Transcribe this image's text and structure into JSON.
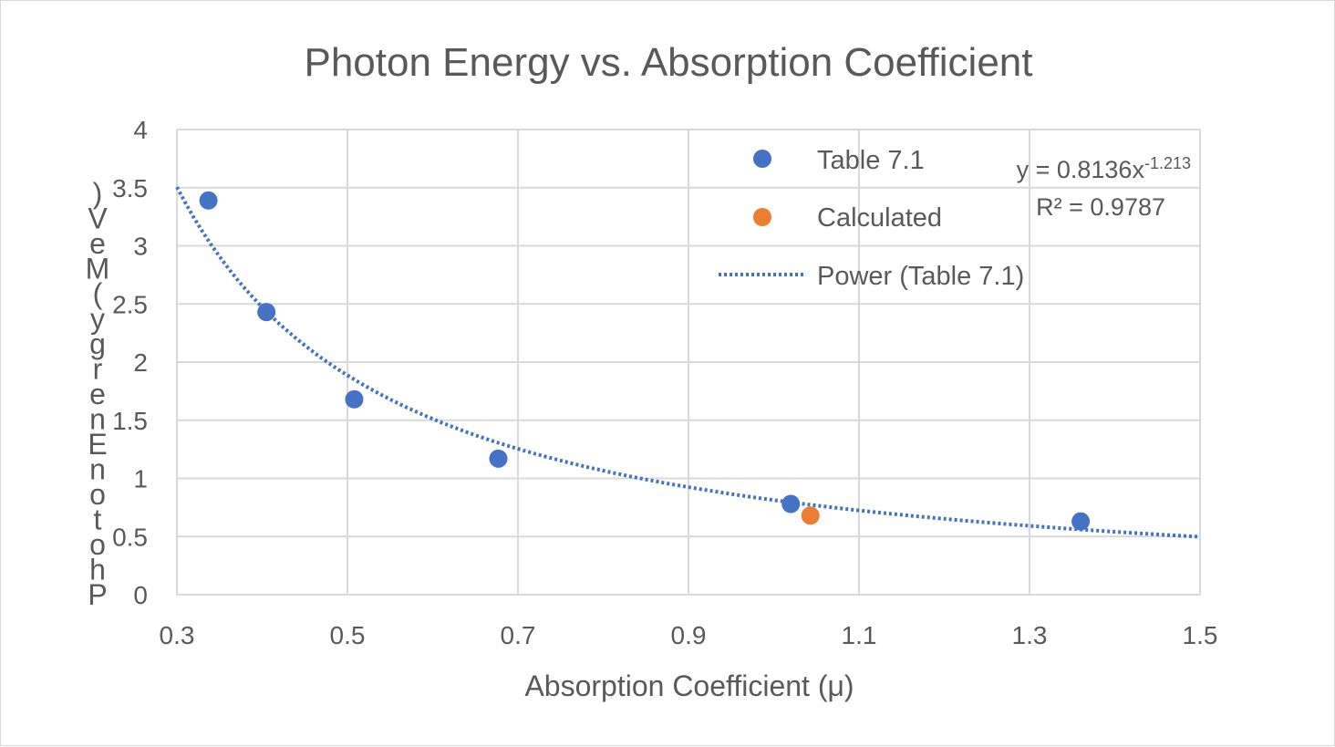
{
  "chart_data": {
    "type": "scatter",
    "title": "Photon Energy vs. Absorption Coefficient",
    "xlabel": "Absorption Coefficient (μ)",
    "ylabel": "Photon Energy (MeV)",
    "xlim": [
      0.3,
      1.5
    ],
    "ylim": [
      0,
      4
    ],
    "x_ticks": [
      "0.3",
      "0.5",
      "0.7",
      "0.9",
      "1.1",
      "1.3",
      "1.5"
    ],
    "y_ticks": [
      "0",
      "0.5",
      "1",
      "1.5",
      "2",
      "2.5",
      "3",
      "3.5",
      "4"
    ],
    "grid": true,
    "legend_position": "top-right",
    "series": [
      {
        "name": "Table 7.1",
        "color": "#4472c4",
        "x": [
          0.337,
          0.405,
          0.508,
          0.677,
          1.02,
          1.36
        ],
        "y": [
          3.39,
          2.43,
          1.68,
          1.17,
          0.78,
          0.63
        ]
      },
      {
        "name": "Calculated",
        "color": "#ed7d31",
        "x": [
          1.043
        ],
        "y": [
          0.68
        ]
      }
    ],
    "trendline": {
      "name": "Power (Table 7.1)",
      "type": "power",
      "color": "#4472c4",
      "coefficient": 0.8136,
      "exponent": -1.213,
      "equation_prefix": "y = 0.8136x",
      "equation_exponent": "-1.213",
      "r_squared_text": "R² = 0.9787"
    }
  }
}
